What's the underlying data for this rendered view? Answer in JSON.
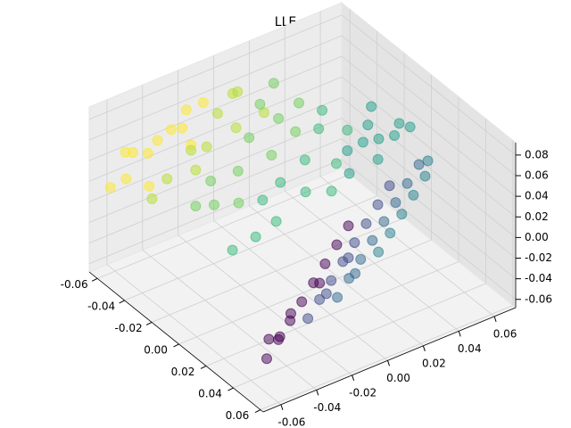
{
  "chart_data": {
    "type": "scatter3d",
    "title": "LLE",
    "xlim": [
      -0.066,
      0.062
    ],
    "ylim": [
      -0.07,
      0.072
    ],
    "zlim": [
      -0.068,
      0.092
    ],
    "xticks": [
      -0.06,
      -0.04,
      -0.02,
      {
        "value": 0,
        "label": "0.00"
      },
      0.02,
      0.04,
      0.06
    ],
    "yticks": [
      -0.06,
      -0.04,
      -0.02,
      {
        "value": 0,
        "label": "0.00"
      },
      0.02,
      0.04,
      0.06
    ],
    "zticks": [
      -0.06,
      -0.04,
      -0.02,
      {
        "value": 0,
        "label": "0.00"
      },
      0.02,
      0.04,
      0.06,
      0.08
    ],
    "grid": true,
    "series": [
      {
        "color": "#fde725",
        "x": [
          -0.06,
          -0.058,
          -0.055,
          -0.06,
          -0.052,
          -0.057,
          -0.05,
          -0.062,
          -0.054,
          -0.048,
          -0.059,
          -0.05
        ],
        "y": [
          -0.02,
          -0.03,
          -0.04,
          -0.05,
          -0.06,
          -0.065,
          -0.03,
          -0.04,
          -0.015,
          -0.05,
          -0.055,
          -0.025
        ],
        "z": [
          0.06,
          0.05,
          0.05,
          0.04,
          0.03,
          0.02,
          0.06,
          0.03,
          0.07,
          0.02,
          0.045,
          0.04
        ]
      },
      {
        "color": "#b5de2b",
        "x": [
          -0.05,
          -0.045,
          -0.052,
          -0.04,
          -0.048,
          -0.043,
          -0.055,
          -0.046,
          -0.05,
          -0.042
        ],
        "y": [
          -0.01,
          -0.02,
          0.0,
          -0.03,
          -0.04,
          -0.005,
          0.005,
          -0.05,
          -0.025,
          0.01
        ],
        "z": [
          0.06,
          0.04,
          0.07,
          0.03,
          0.02,
          0.05,
          0.065,
          0.01,
          0.035,
          0.055
        ]
      },
      {
        "color": "#6ece58",
        "x": [
          -0.045,
          -0.04,
          -0.038,
          -0.035,
          -0.042,
          -0.03,
          -0.033,
          -0.048,
          -0.036,
          -0.028,
          -0.04,
          -0.032
        ],
        "y": [
          0.01,
          0.0,
          0.015,
          -0.01,
          -0.02,
          0.005,
          -0.025,
          0.02,
          0.025,
          -0.015,
          -0.03,
          0.02
        ],
        "z": [
          0.06,
          0.04,
          0.05,
          0.02,
          0.01,
          0.03,
          0.0,
          0.07,
          0.06,
          0.0,
          -0.005,
          0.04
        ]
      },
      {
        "color": "#35b779",
        "x": [
          -0.03,
          -0.025,
          -0.02,
          -0.028,
          -0.018,
          -0.022,
          -0.032,
          -0.015,
          -0.026,
          -0.012,
          -0.02,
          -0.03
        ],
        "y": [
          0.01,
          0.02,
          0.0,
          0.03,
          0.015,
          -0.01,
          0.035,
          0.03,
          -0.02,
          0.025,
          0.04,
          0.0
        ],
        "z": [
          0.0,
          0.02,
          -0.02,
          0.04,
          0.0,
          -0.03,
          0.05,
          0.02,
          -0.04,
          0.0,
          0.04,
          -0.01
        ]
      },
      {
        "color": "#1f9e89",
        "x": [
          -0.02,
          -0.015,
          -0.01,
          -0.005,
          -0.012,
          -0.018,
          -0.008,
          0.0,
          -0.022,
          -0.004
        ],
        "y": [
          0.04,
          0.045,
          0.05,
          0.055,
          0.035,
          0.05,
          0.06,
          0.06,
          0.055,
          0.045
        ],
        "z": [
          0.02,
          0.03,
          0.035,
          0.04,
          0.01,
          0.04,
          0.045,
          0.05,
          0.05,
          0.025
        ]
      },
      {
        "color": "#26828e",
        "x": [
          0.0225,
          0.018,
          0.0135,
          0.009,
          0.0045,
          0.0
        ],
        "y": [
          0.025,
          0.035,
          0.045,
          0.055,
          0.065,
          0.07
        ],
        "z": [
          -0.0225,
          -0.016,
          -0.0095,
          -0.003,
          0.0035,
          0.01
        ]
      },
      {
        "color": "#31688e",
        "x": [
          0.0315,
          0.027,
          0.0225,
          0.018,
          0.0135,
          0.009,
          0.0045,
          0.0,
          0.025
        ],
        "y": [
          -0.005,
          0.005,
          0.015,
          0.025,
          0.035,
          0.045,
          0.055,
          0.065,
          0.01
        ],
        "z": [
          -0.0355,
          -0.029,
          -0.0225,
          -0.016,
          -0.0095,
          -0.003,
          0.0035,
          0.01,
          -0.03
        ]
      },
      {
        "color": "#3e4989",
        "x": [
          0.036,
          0.0315,
          0.027,
          0.0225,
          0.018,
          0.0135,
          0.009,
          0.0045,
          0.03,
          0.02
        ],
        "y": [
          -0.025,
          -0.015,
          -0.005,
          0.005,
          0.015,
          0.025,
          0.035,
          0.045,
          -0.01,
          0.01
        ],
        "z": [
          -0.037,
          -0.0305,
          -0.024,
          -0.0175,
          -0.011,
          -0.0045,
          0.002,
          0.0085,
          -0.03,
          -0.02
        ]
      },
      {
        "color": "#440154",
        "x": [
          0.045,
          0.0405,
          0.036,
          0.0315,
          0.027,
          0.0225,
          0.018,
          0.0135,
          0.04,
          0.03,
          0.025,
          0.035
        ],
        "y": [
          -0.055,
          -0.045,
          -0.035,
          -0.025,
          -0.015,
          -0.005,
          0.005,
          0.015,
          -0.05,
          -0.03,
          -0.01,
          -0.04
        ],
        "z": [
          -0.045,
          -0.0385,
          -0.032,
          -0.0255,
          -0.019,
          -0.0125,
          -0.006,
          0.0005,
          -0.035,
          -0.035,
          -0.025,
          -0.045
        ]
      }
    ]
  }
}
